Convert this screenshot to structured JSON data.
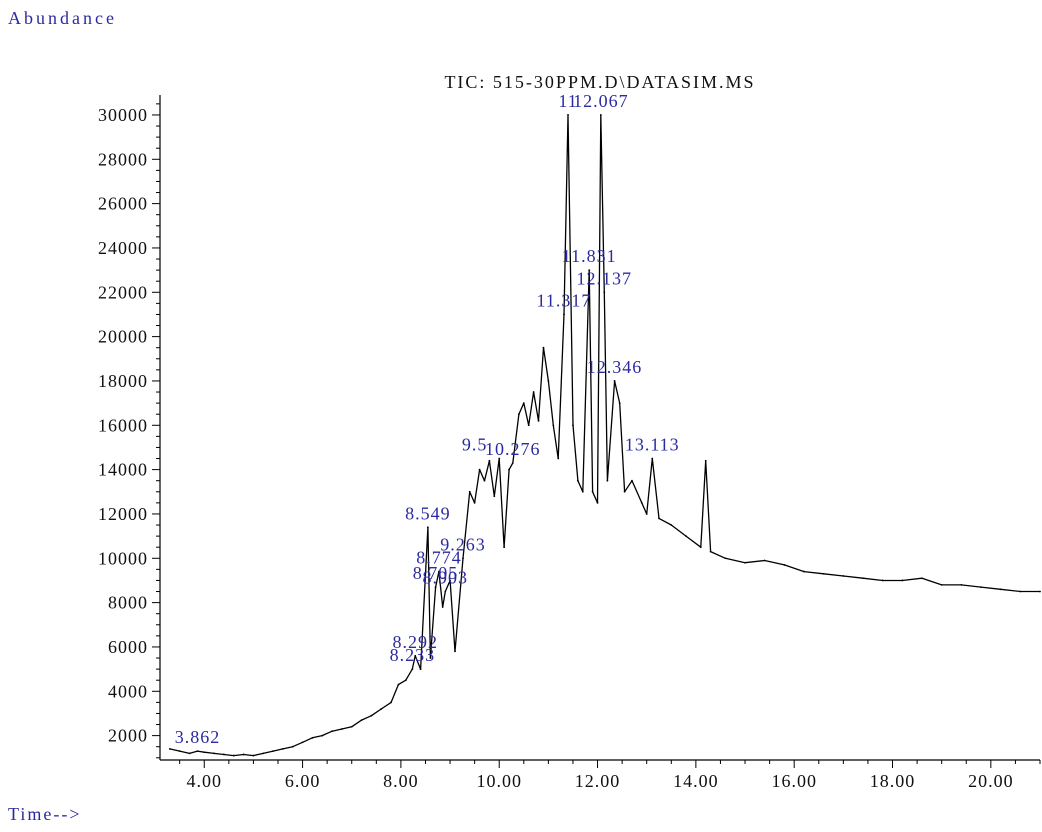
{
  "chart_data": {
    "type": "line",
    "title": "TIC: 515-30PPM.D\\DATASIM.MS",
    "ylabel": "Abundance",
    "xlabel": "Time-->",
    "xlim": [
      3.1,
      21.0
    ],
    "ylim": [
      900,
      30900
    ],
    "x_ticks": [
      4,
      6,
      8,
      10,
      12,
      14,
      16,
      18,
      20
    ],
    "x_tick_labels": [
      "4.00",
      "6.00",
      "8.00",
      "10.00",
      "12.00",
      "14.00",
      "16.00",
      "18.00",
      "20.00"
    ],
    "y_ticks": [
      2000,
      4000,
      6000,
      8000,
      10000,
      12000,
      14000,
      16000,
      18000,
      20000,
      22000,
      24000,
      26000,
      28000,
      30000
    ],
    "y_tick_labels": [
      "2000",
      "4000",
      "6000",
      "8000",
      "10000",
      "12000",
      "14000",
      "16000",
      "18000",
      "20000",
      "22000",
      "24000",
      "26000",
      "28000",
      "30000"
    ],
    "series": [
      {
        "color": "#000000",
        "x": [
          3.3,
          3.5,
          3.7,
          3.862,
          4.0,
          4.2,
          4.4,
          4.6,
          4.8,
          5.0,
          5.2,
          5.4,
          5.6,
          5.8,
          6.0,
          6.2,
          6.4,
          6.6,
          6.8,
          7.0,
          7.2,
          7.4,
          7.6,
          7.8,
          7.95,
          8.1,
          8.233,
          8.292,
          8.4,
          8.549,
          8.6,
          8.705,
          8.774,
          8.85,
          8.903,
          9.0,
          9.1,
          9.263,
          9.4,
          9.5,
          9.6,
          9.7,
          9.8,
          9.9,
          10.0,
          10.1,
          10.2,
          10.276,
          10.4,
          10.5,
          10.6,
          10.7,
          10.8,
          10.9,
          11.0,
          11.1,
          11.2,
          11.317,
          11.4,
          11.5,
          11.6,
          11.7,
          11.831,
          11.9,
          12.0,
          12.067,
          12.137,
          12.2,
          12.346,
          12.45,
          12.55,
          12.7,
          12.9,
          13.0,
          13.113,
          13.25,
          13.5,
          13.8,
          14.1,
          14.2,
          14.3,
          14.6,
          15.0,
          15.4,
          15.8,
          16.2,
          16.6,
          17.0,
          17.4,
          17.8,
          18.2,
          18.6,
          19.0,
          19.4,
          19.8,
          20.2,
          20.6,
          21.0
        ],
        "y": [
          1400,
          1300,
          1200,
          1300,
          1250,
          1200,
          1150,
          1100,
          1150,
          1100,
          1200,
          1300,
          1400,
          1500,
          1700,
          1900,
          2000,
          2200,
          2300,
          2400,
          2700,
          2900,
          3200,
          3500,
          4300,
          4500,
          5000,
          5600,
          5000,
          11400,
          5500,
          8700,
          9400,
          7800,
          8500,
          9000,
          5800,
          10000,
          13000,
          12500,
          14000,
          13500,
          14400,
          12800,
          14500,
          10500,
          14000,
          14300,
          16500,
          17000,
          16000,
          17500,
          16200,
          19500,
          18000,
          16000,
          14500,
          21000,
          30000,
          16000,
          13500,
          13000,
          23000,
          13000,
          12500,
          30000,
          22000,
          13500,
          18000,
          17000,
          13000,
          13500,
          12500,
          12000,
          14500,
          11800,
          11500,
          11000,
          10500,
          14400,
          10300,
          10000,
          9800,
          9900,
          9700,
          9400,
          9300,
          9200,
          9100,
          9000,
          9000,
          9100,
          8800,
          8800,
          8700,
          8600,
          8500,
          8500
        ]
      }
    ],
    "peak_labels": [
      {
        "x": 3.862,
        "y": 1300,
        "text": "3.862"
      },
      {
        "x": 8.233,
        "y": 5000,
        "text": "8.233"
      },
      {
        "x": 8.292,
        "y": 5600,
        "text": "8.292"
      },
      {
        "x": 8.549,
        "y": 11400,
        "text": "8.549"
      },
      {
        "x": 8.705,
        "y": 8700,
        "text": "8.705"
      },
      {
        "x": 8.774,
        "y": 9400,
        "text": "8.774"
      },
      {
        "x": 8.903,
        "y": 8500,
        "text": "8.903"
      },
      {
        "x": 9.263,
        "y": 10000,
        "text": "9.263"
      },
      {
        "x": 9.5,
        "y": 14500,
        "text": "9.5"
      },
      {
        "x": 10.276,
        "y": 14300,
        "text": "10.276"
      },
      {
        "x": 11.317,
        "y": 21000,
        "text": "11.317"
      },
      {
        "x": 11.4,
        "y": 30000,
        "text": "11"
      },
      {
        "x": 11.831,
        "y": 23000,
        "text": "11.831"
      },
      {
        "x": 12.067,
        "y": 30000,
        "text": "12.067"
      },
      {
        "x": 12.137,
        "y": 22000,
        "text": "12.137"
      },
      {
        "x": 12.346,
        "y": 18000,
        "text": "12.346"
      },
      {
        "x": 13.113,
        "y": 14500,
        "text": "13.113"
      }
    ]
  }
}
